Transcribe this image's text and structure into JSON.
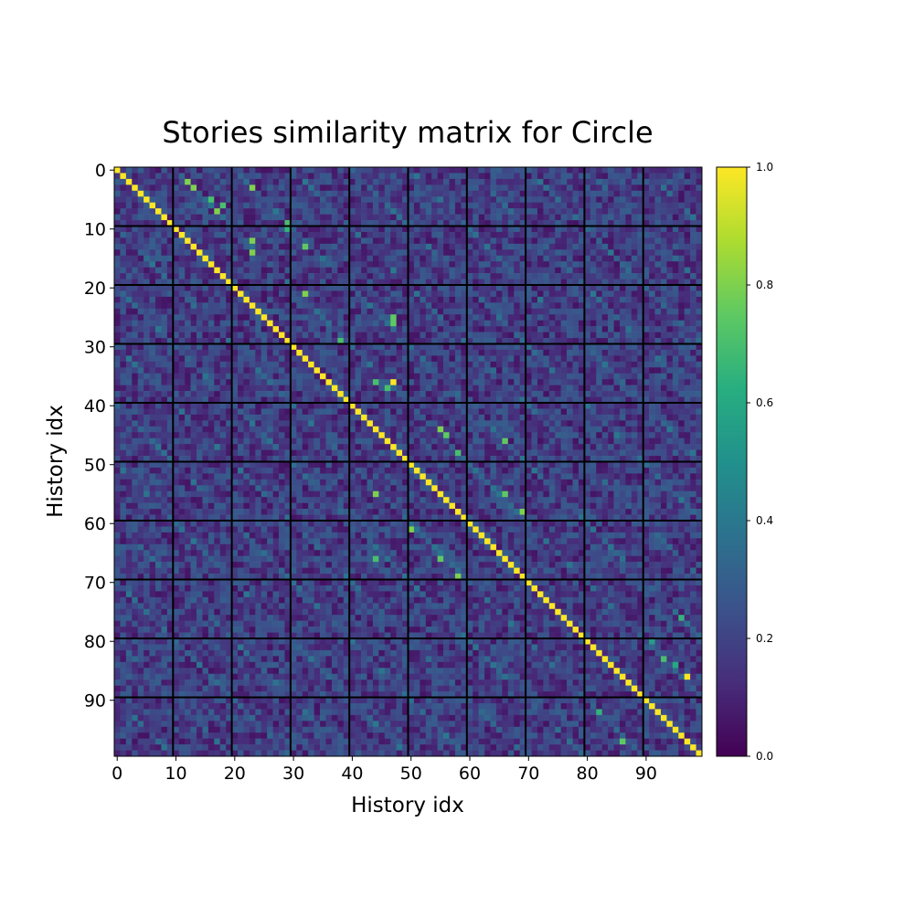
{
  "chart_data": {
    "type": "heatmap",
    "title": "Stories similarity matrix for Circle",
    "xlabel": "History idx",
    "ylabel": "History idx",
    "n": 100,
    "x_ticks": [
      0,
      10,
      20,
      30,
      40,
      50,
      60,
      70,
      80,
      90
    ],
    "y_ticks": [
      0,
      10,
      20,
      30,
      40,
      50,
      60,
      70,
      80,
      90
    ],
    "grid_lines_at": [
      9.5,
      19.5,
      29.5,
      39.5,
      49.5,
      59.5,
      69.5,
      79.5,
      89.5
    ],
    "colormap": "viridis",
    "vmin": 0.0,
    "vmax": 1.0,
    "colorbar_ticks": [
      0.0,
      0.2,
      0.4,
      0.6,
      0.8,
      1.0
    ],
    "colorbar_tick_labels": [
      "0.0",
      "0.2",
      "0.4",
      "0.6",
      "0.8",
      "1.0"
    ],
    "diagonal_value": 1.0,
    "background_range": [
      0.05,
      0.3
    ],
    "high_similarity_pairs": [
      {
        "i": 2,
        "j": 12,
        "v": 0.8
      },
      {
        "i": 3,
        "j": 13,
        "v": 0.8
      },
      {
        "i": 3,
        "j": 23,
        "v": 0.8
      },
      {
        "i": 12,
        "j": 23,
        "v": 0.8
      },
      {
        "i": 7,
        "j": 17,
        "v": 0.8
      },
      {
        "i": 14,
        "j": 23,
        "v": 0.8
      },
      {
        "i": 5,
        "j": 16,
        "v": 0.7
      },
      {
        "i": 6,
        "j": 18,
        "v": 0.7
      },
      {
        "i": 9,
        "j": 29,
        "v": 0.7
      },
      {
        "i": 10,
        "j": 29,
        "v": 0.65
      },
      {
        "i": 13,
        "j": 32,
        "v": 0.75
      },
      {
        "i": 21,
        "j": 32,
        "v": 0.8
      },
      {
        "i": 29,
        "j": 38,
        "v": 0.7
      },
      {
        "i": 36,
        "j": 47,
        "v": 1.0
      },
      {
        "i": 37,
        "j": 46,
        "v": 0.7
      },
      {
        "i": 36,
        "j": 44,
        "v": 0.7
      },
      {
        "i": 25,
        "j": 47,
        "v": 0.75
      },
      {
        "i": 26,
        "j": 47,
        "v": 0.75
      },
      {
        "i": 44,
        "j": 55,
        "v": 0.8
      },
      {
        "i": 45,
        "j": 56,
        "v": 0.75
      },
      {
        "i": 46,
        "j": 66,
        "v": 0.75
      },
      {
        "i": 48,
        "j": 58,
        "v": 0.7
      },
      {
        "i": 55,
        "j": 66,
        "v": 0.75
      },
      {
        "i": 55,
        "j": 44,
        "v": 0.8
      },
      {
        "i": 58,
        "j": 69,
        "v": 0.8
      },
      {
        "i": 61,
        "j": 50,
        "v": 0.8
      },
      {
        "i": 66,
        "j": 44,
        "v": 0.7
      },
      {
        "i": 66,
        "j": 55,
        "v": 0.75
      },
      {
        "i": 69,
        "j": 58,
        "v": 0.8
      },
      {
        "i": 86,
        "j": 97,
        "v": 1.0
      },
      {
        "i": 97,
        "j": 86,
        "v": 0.75
      },
      {
        "i": 83,
        "j": 93,
        "v": 0.7
      },
      {
        "i": 92,
        "j": 82,
        "v": 0.65
      },
      {
        "i": 76,
        "j": 96,
        "v": 0.65
      },
      {
        "i": 84,
        "j": 95,
        "v": 0.6
      },
      {
        "i": 80,
        "j": 91,
        "v": 0.55
      }
    ]
  }
}
